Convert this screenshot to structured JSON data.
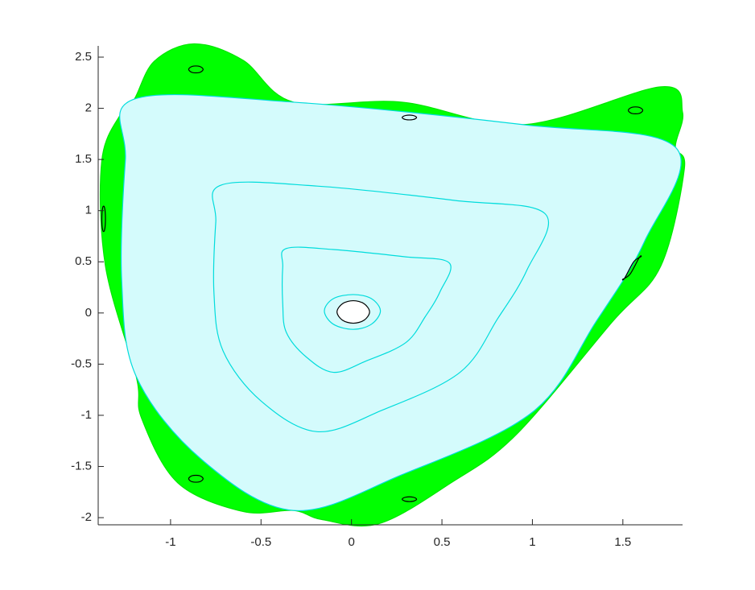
{
  "chart_data": {
    "type": "line",
    "xlim": [
      -1.4,
      1.83
    ],
    "ylim": [
      -2.07,
      2.61
    ],
    "xticks": [
      -1,
      -0.5,
      0,
      0.5,
      1,
      1.5
    ],
    "yticks": [
      -2,
      -1.5,
      -1,
      -0.5,
      0,
      0.5,
      1,
      1.5,
      2,
      2.5
    ],
    "series": [
      {
        "color": "#00e600",
        "fill": "#00ff00",
        "closed": true,
        "x": [
          -1.2,
          -1.09,
          -0.87,
          -0.6,
          -0.32,
          0.28,
          0.95,
          1.71,
          1.83,
          1.79,
          1.84,
          1.71,
          1.44,
          0.91,
          0.55,
          0.15,
          -0.16,
          -0.32,
          -0.6,
          -0.96,
          -1.16,
          -1.19,
          -1.36,
          -1.38,
          -1.27
        ],
        "y": [
          2.09,
          2.46,
          2.63,
          2.47,
          2.06,
          2.06,
          1.84,
          2.21,
          1.96,
          1.62,
          1.41,
          0.46,
          -0.09,
          -1.19,
          -1.66,
          -2.06,
          -2.02,
          -1.93,
          -1.94,
          -1.66,
          -1.03,
          -0.62,
          0.46,
          1.49,
          1.96
        ]
      },
      {
        "color": "#00dcdc",
        "fill": "#d4fbfc",
        "closed": true,
        "x": [
          -1.2,
          -0.32,
          0.95,
          1.79,
          1.62,
          1.35,
          1.0,
          0.28,
          -0.32,
          -0.83,
          -1.19,
          -1.27,
          -1.25
        ],
        "y": [
          2.09,
          2.06,
          1.84,
          1.62,
          0.7,
          -0.09,
          -0.97,
          -1.58,
          -1.93,
          -1.43,
          -0.62,
          0.31,
          1.49
        ]
      },
      {
        "color": "#00dcdc",
        "closed": true,
        "x": [
          -0.72,
          -0.19,
          0.57,
          1.07,
          0.97,
          0.81,
          0.6,
          0.17,
          -0.19,
          -0.5,
          -0.71,
          -0.76,
          -0.75
        ],
        "y": [
          1.25,
          1.24,
          1.1,
          0.97,
          0.42,
          -0.05,
          -0.58,
          -0.95,
          -1.16,
          -0.86,
          -0.37,
          0.19,
          0.89
        ]
      },
      {
        "color": "#00dcdc",
        "closed": true,
        "x": [
          -0.36,
          -0.1,
          0.29,
          0.54,
          0.49,
          0.41,
          0.3,
          0.08,
          -0.1,
          -0.25,
          -0.36,
          -0.38,
          -0.38
        ],
        "y": [
          0.63,
          0.62,
          0.55,
          0.49,
          0.21,
          -0.03,
          -0.29,
          -0.47,
          -0.58,
          -0.43,
          -0.19,
          0.09,
          0.45
        ]
      },
      {
        "color": "#00dcdc",
        "closed": true,
        "x": [
          0.16,
          0.11,
          0.01,
          -0.1,
          -0.15,
          -0.1,
          0.01,
          0.11
        ],
        "y": [
          0.02,
          0.14,
          0.18,
          0.14,
          0.02,
          -0.11,
          -0.16,
          -0.11
        ]
      },
      {
        "color": "#000000",
        "fill": "#ffffff",
        "closed": true,
        "x": [
          0.1,
          0.07,
          0.01,
          -0.05,
          -0.08,
          -0.05,
          0.01,
          0.07
        ],
        "y": [
          0.01,
          0.09,
          0.12,
          0.09,
          0.01,
          -0.07,
          -0.1,
          -0.07
        ]
      },
      {
        "color": "#000000",
        "closed": true,
        "x": [
          -0.82,
          -0.84,
          -0.88,
          -0.9,
          -0.88,
          -0.84
        ],
        "y": [
          2.38,
          2.41,
          2.41,
          2.38,
          2.35,
          2.35
        ]
      },
      {
        "color": "#000000",
        "closed": true,
        "x": [
          0.36,
          0.34,
          0.3,
          0.28,
          0.3,
          0.34
        ],
        "y": [
          1.91,
          1.93,
          1.93,
          1.91,
          1.89,
          1.89
        ]
      },
      {
        "color": "#000000",
        "closed": true,
        "x": [
          1.61,
          1.59,
          1.55,
          1.53,
          1.55,
          1.59
        ],
        "y": [
          1.98,
          2.01,
          2.01,
          1.98,
          1.95,
          1.95
        ]
      },
      {
        "color": "#000000",
        "closed": true,
        "x": [
          -1.36,
          -1.365,
          -1.375,
          -1.38,
          -1.375,
          -1.365
        ],
        "y": [
          0.92,
          1.03,
          1.03,
          0.92,
          0.81,
          0.81
        ]
      },
      {
        "color": "#000000",
        "closed": true,
        "x": [
          1.6,
          1.56,
          1.51,
          1.5,
          1.54,
          1.59
        ],
        "y": [
          0.55,
          0.5,
          0.34,
          0.33,
          0.38,
          0.54
        ]
      },
      {
        "color": "#000000",
        "closed": true,
        "x": [
          -0.82,
          -0.84,
          -0.88,
          -0.9,
          -0.88,
          -0.84
        ],
        "y": [
          -1.62,
          -1.59,
          -1.59,
          -1.62,
          -1.65,
          -1.65
        ]
      },
      {
        "color": "#000000",
        "closed": true,
        "x": [
          0.36,
          0.34,
          0.3,
          0.28,
          0.3,
          0.34
        ],
        "y": [
          -1.82,
          -1.8,
          -1.8,
          -1.82,
          -1.84,
          -1.84
        ]
      }
    ]
  }
}
